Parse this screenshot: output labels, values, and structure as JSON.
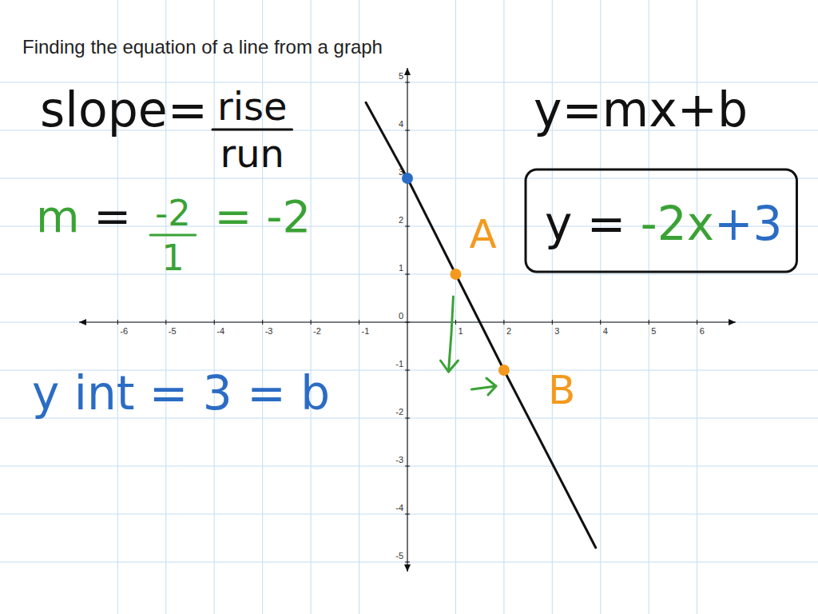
{
  "chart_data": {
    "type": "line",
    "title": "Finding the equation of a line from a graph",
    "xlim": [
      -6.8,
      6.8
    ],
    "ylim": [
      -5.2,
      5.3
    ],
    "xticks": [
      -6,
      -5,
      -4,
      -3,
      -2,
      -1,
      1,
      2,
      3,
      4,
      5,
      6
    ],
    "yticks": [
      -5,
      -4,
      -3,
      -2,
      -1,
      0,
      1,
      2,
      3,
      4,
      5
    ],
    "grid": true,
    "series": [
      {
        "type": "line",
        "color": "#111111",
        "x": [
          -0.86,
          0,
          1,
          2,
          3.9
        ],
        "values": [
          4.58,
          3,
          1,
          -1,
          -4.7
        ]
      },
      {
        "type": "scatter",
        "color": "#2b6cc4",
        "marker": "circle",
        "x": [
          0
        ],
        "values": [
          3
        ]
      },
      {
        "type": "scatter",
        "color": "#f39a1e",
        "marker": "circle",
        "x": [
          1,
          2
        ],
        "values": [
          1,
          -1
        ],
        "point_labels": [
          "A",
          "B"
        ]
      }
    ],
    "annotations": [
      {
        "parts": [
          {
            "text": "slope=",
            "color": "#111111"
          },
          {
            "numerator": "rise",
            "denominator": "run",
            "color": "#111111"
          }
        ]
      },
      {
        "parts": [
          {
            "text": "y=mx+b",
            "color": "#111111"
          }
        ]
      },
      {
        "parts": [
          {
            "text": "m",
            "color": "#3aa235"
          },
          {
            "text": " = ",
            "color": "#111111"
          },
          {
            "numerator": "-2",
            "denominator": "1",
            "color": "#3aa235"
          },
          {
            "text": " = -2",
            "color": "#3aa235"
          }
        ]
      },
      {
        "parts": [
          {
            "text": "y int = 3 = b",
            "color": "#2b6cc4"
          }
        ]
      },
      {
        "parts": [
          {
            "text": "y = ",
            "color": "#111111"
          },
          {
            "text": "-2x",
            "color": "#3aa235"
          },
          {
            "text": "+3",
            "color": "#2b6cc4"
          }
        ]
      }
    ]
  }
}
